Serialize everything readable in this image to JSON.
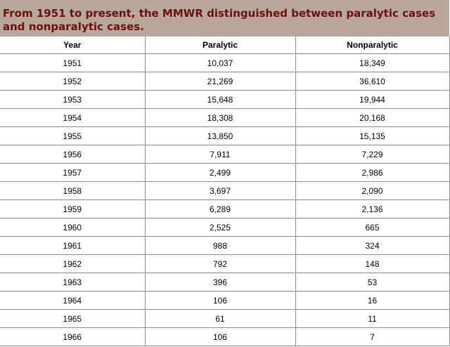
{
  "caption": "From 1951 to present, the MMWR distinguished between paralytic cases and nonparalytic cases.",
  "table": {
    "headers": [
      "Year",
      "Paralytic",
      "Nonparalytic"
    ],
    "rows": [
      [
        "1951",
        "10,037",
        "18,349"
      ],
      [
        "1952",
        "21,269",
        "36,610"
      ],
      [
        "1953",
        "15,648",
        "19,944"
      ],
      [
        "1954",
        "18,308",
        "20,168"
      ],
      [
        "1955",
        "13,850",
        "15,135"
      ],
      [
        "1956",
        "7,911",
        "7,229"
      ],
      [
        "1957",
        "2,499",
        "2,986"
      ],
      [
        "1958",
        "3,697",
        "2,090"
      ],
      [
        "1959",
        "6,289",
        "2,136"
      ],
      [
        "1960",
        "2,525",
        "665"
      ],
      [
        "1961",
        "988",
        "324"
      ],
      [
        "1962",
        "792",
        "148"
      ],
      [
        "1963",
        "396",
        "53"
      ],
      [
        "1964",
        "106",
        "16"
      ],
      [
        "1965",
        "61",
        "11"
      ],
      [
        "1966",
        "106",
        "7"
      ]
    ]
  },
  "colors": {
    "caption_background": "#b8a79a",
    "caption_text": "#6b0f0f",
    "border": "#8c8c8c"
  }
}
